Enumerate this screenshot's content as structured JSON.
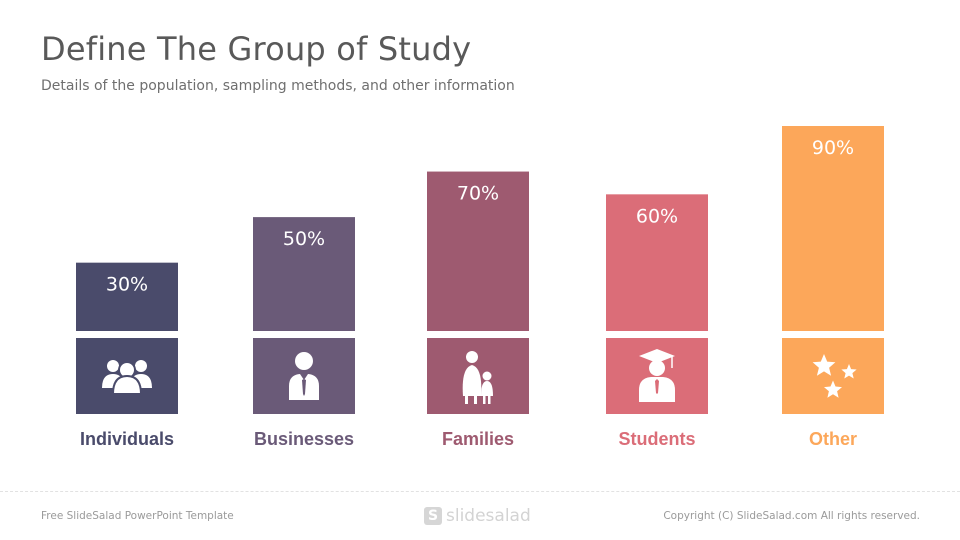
{
  "slide": {
    "title": "Define The Group of Study",
    "subtitle": "Details of the population, sampling methods, and other information"
  },
  "chart_data": {
    "type": "bar",
    "categories": [
      "Individuals",
      "Businesses",
      "Families",
      "Students",
      "Other"
    ],
    "values": [
      30,
      50,
      70,
      60,
      90
    ],
    "value_labels": [
      "30%",
      "50%",
      "70%",
      "60%",
      "90%"
    ],
    "colors": [
      "#4a4b6b",
      "#6a5a78",
      "#9e5a70",
      "#db6d78",
      "#fca75a"
    ],
    "icons": [
      "people-group-icon",
      "businessman-icon",
      "family-icon",
      "graduate-icon",
      "stars-icon"
    ],
    "ylim": [
      0,
      100
    ],
    "grid": false,
    "legend": "none"
  },
  "footer": {
    "left": "Free SlideSalad PowerPoint Template",
    "logo_mark": "S",
    "logo_text": "slidesalad",
    "right": "Copyright (C) SlideSalad.com All rights reserved."
  }
}
